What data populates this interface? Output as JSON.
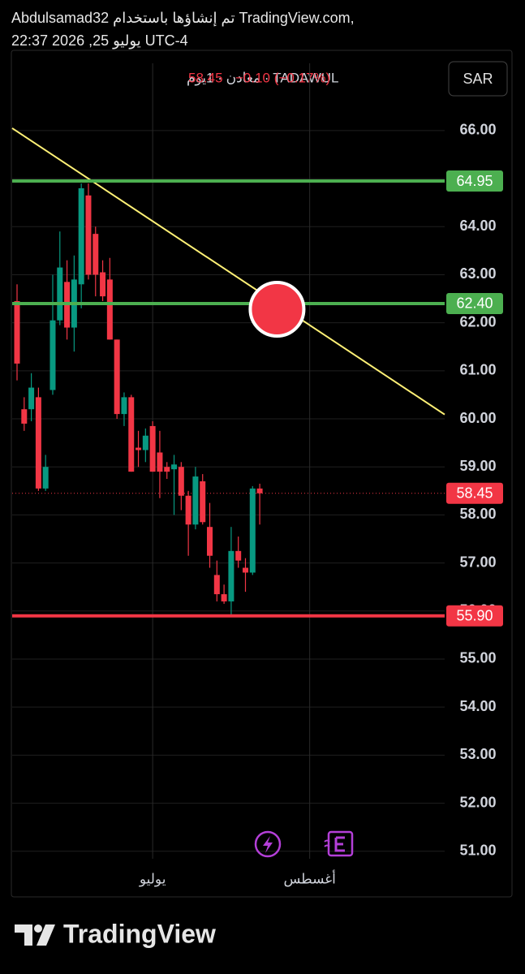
{
  "header_lines": [
    "Abdulsamad32 تم إنشاؤها باستخدام TradingView.com,",
    "22:37 2026 ,25 يوليو UTC-4"
  ],
  "chart_data": {
    "type": "candlestick",
    "symbol": "TADAWUL · معادن · 1يوم",
    "change": "−0.10 (−0.17%)",
    "currency_button": "SAR",
    "up_color": "#089981",
    "down_color": "#f23645",
    "categories": [
      null,
      null,
      null,
      null,
      null,
      null,
      null,
      null,
      null,
      null,
      null,
      null,
      null,
      null,
      null,
      null,
      null,
      null,
      null,
      "يوليو",
      null,
      null,
      null,
      null,
      null,
      null,
      null,
      null,
      null,
      null,
      null,
      null,
      null,
      null,
      null,
      null,
      null,
      null,
      null,
      null,
      null,
      "أغسطس",
      null,
      null,
      null,
      null,
      null,
      null,
      null,
      null,
      null,
      null,
      null,
      null,
      null,
      null,
      null,
      null,
      null,
      null
    ],
    "open": [
      62.45,
      60.2,
      60.2,
      60.45,
      58.55,
      60.6,
      62.05,
      62.85,
      61.9,
      62.8,
      64.65,
      63.85,
      63.05,
      62.9,
      61.65,
      60.1,
      60.45,
      59.4,
      59.35,
      59.85,
      59.3,
      59.0,
      58.95,
      59.0,
      58.4,
      57.8,
      58.7,
      57.75,
      56.75,
      56.35,
      56.2,
      57.25,
      56.9,
      56.8,
      58.55,
      null,
      null,
      null,
      null,
      null,
      null,
      null,
      null,
      null,
      null,
      null,
      null,
      null,
      null,
      null,
      null,
      null,
      null,
      null,
      null,
      null,
      null,
      null,
      null,
      null
    ],
    "high": [
      62.8,
      60.45,
      60.95,
      60.65,
      59.25,
      63.0,
      63.9,
      63.3,
      63.4,
      64.9,
      64.9,
      64.0,
      63.3,
      63.35,
      61.65,
      60.55,
      60.5,
      59.75,
      59.8,
      59.95,
      59.75,
      59.1,
      59.25,
      59.1,
      58.5,
      59.0,
      58.85,
      58.25,
      57.05,
      56.55,
      57.75,
      57.55,
      57.1,
      58.6,
      58.65,
      null,
      null,
      null,
      null,
      null,
      null,
      null,
      null,
      null,
      null,
      null,
      null,
      null,
      null,
      null,
      null,
      null,
      null,
      null,
      null,
      null,
      null,
      null,
      null,
      null
    ],
    "low": [
      60.8,
      59.75,
      59.95,
      58.5,
      58.5,
      60.5,
      61.95,
      61.65,
      61.4,
      62.3,
      62.9,
      62.55,
      62.45,
      61.65,
      60.0,
      59.85,
      58.9,
      59.0,
      59.1,
      58.9,
      58.35,
      58.75,
      58.0,
      58.1,
      57.15,
      57.7,
      57.8,
      56.9,
      56.2,
      56.15,
      55.9,
      56.9,
      56.4,
      56.75,
      57.8,
      null,
      null,
      null,
      null,
      null,
      null,
      null,
      null,
      null,
      null,
      null,
      null,
      null,
      null,
      null,
      null,
      null,
      null,
      null,
      null,
      null,
      null,
      null,
      null,
      null
    ],
    "close": [
      61.15,
      59.9,
      60.65,
      58.55,
      59.0,
      62.05,
      63.15,
      61.9,
      62.9,
      64.8,
      63.0,
      63.0,
      62.55,
      61.65,
      60.1,
      60.45,
      58.9,
      59.35,
      59.65,
      58.9,
      58.9,
      58.9,
      59.05,
      58.4,
      57.8,
      58.8,
      57.85,
      57.15,
      56.35,
      56.2,
      57.25,
      57.05,
      56.8,
      58.55,
      58.45,
      null,
      null,
      null,
      null,
      null,
      null,
      null,
      null,
      null,
      null,
      null,
      null,
      null,
      null,
      null,
      null,
      null,
      null,
      null,
      null,
      null,
      null,
      null,
      null,
      null
    ],
    "ylim": [
      50.05,
      67.4
    ],
    "yticks": [
      {
        "value": 51,
        "label": "51.00"
      },
      {
        "value": 52,
        "label": "52.00"
      },
      {
        "value": 53,
        "label": "53.00"
      },
      {
        "value": 54,
        "label": "54.00"
      },
      {
        "value": 55,
        "label": "55.00"
      },
      {
        "value": 56,
        "label": "56.00"
      },
      {
        "value": 57,
        "label": "57.00"
      },
      {
        "value": 58,
        "label": "58.00"
      },
      {
        "value": 59,
        "label": "59.00"
      },
      {
        "value": 60,
        "label": "60.00"
      },
      {
        "value": 61,
        "label": "61.00"
      },
      {
        "value": 62,
        "label": "62.00"
      },
      {
        "value": 63,
        "label": "63.00"
      },
      {
        "value": 64,
        "label": "64.00"
      },
      {
        "value": 65,
        "label": "65.00"
      },
      {
        "value": 66,
        "label": "66.00"
      }
    ],
    "horizontal_lines": [
      {
        "value": 64.95,
        "label": "64.95",
        "color": "#4caf50"
      },
      {
        "value": 62.4,
        "label": "62.40",
        "color": "#4caf50"
      },
      {
        "value": 55.9,
        "label": "55.90",
        "color": "#f23645"
      }
    ],
    "last_price": {
      "value": 58.45,
      "label": "58.45",
      "color": "#f23645"
    },
    "trendline": {
      "color": "#fff176",
      "values": [
        66.05,
        60.09
      ]
    },
    "grid": true
  },
  "footer": {
    "brand": "TradingView"
  }
}
